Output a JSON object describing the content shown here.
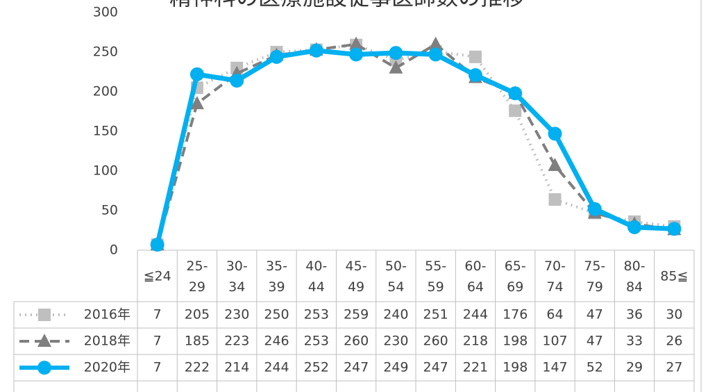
{
  "chart_data": {
    "type": "line",
    "title": "精神科の医療施設従事医師数の推移",
    "categories": [
      "≦24",
      "25-\n29",
      "30-\n34",
      "35-\n39",
      "40-\n44",
      "45-\n49",
      "50-\n54",
      "55-\n59",
      "60-\n64",
      "65-\n69",
      "70-\n74",
      "75-\n79",
      "80-\n84",
      "85≦"
    ],
    "series": [
      {
        "name": "2016年",
        "color": "#bfbfbf",
        "dash": "2 6",
        "marker": "square",
        "values": [
          7,
          205,
          230,
          250,
          253,
          259,
          240,
          251,
          244,
          176,
          64,
          47,
          36,
          30
        ]
      },
      {
        "name": "2018年",
        "color": "#7f7f7f",
        "dash": "14 8",
        "marker": "triangle",
        "values": [
          7,
          185,
          223,
          246,
          253,
          260,
          230,
          260,
          218,
          198,
          107,
          47,
          33,
          26
        ]
      },
      {
        "name": "2020年",
        "color": "#00b0f0",
        "dash": "none",
        "marker": "circle",
        "values": [
          7,
          222,
          214,
          244,
          252,
          247,
          249,
          247,
          221,
          198,
          147,
          52,
          29,
          27
        ]
      }
    ],
    "ylim": [
      0,
      300
    ],
    "yticks": [
      0,
      50,
      100,
      150,
      200,
      250,
      300
    ],
    "grid": false
  }
}
